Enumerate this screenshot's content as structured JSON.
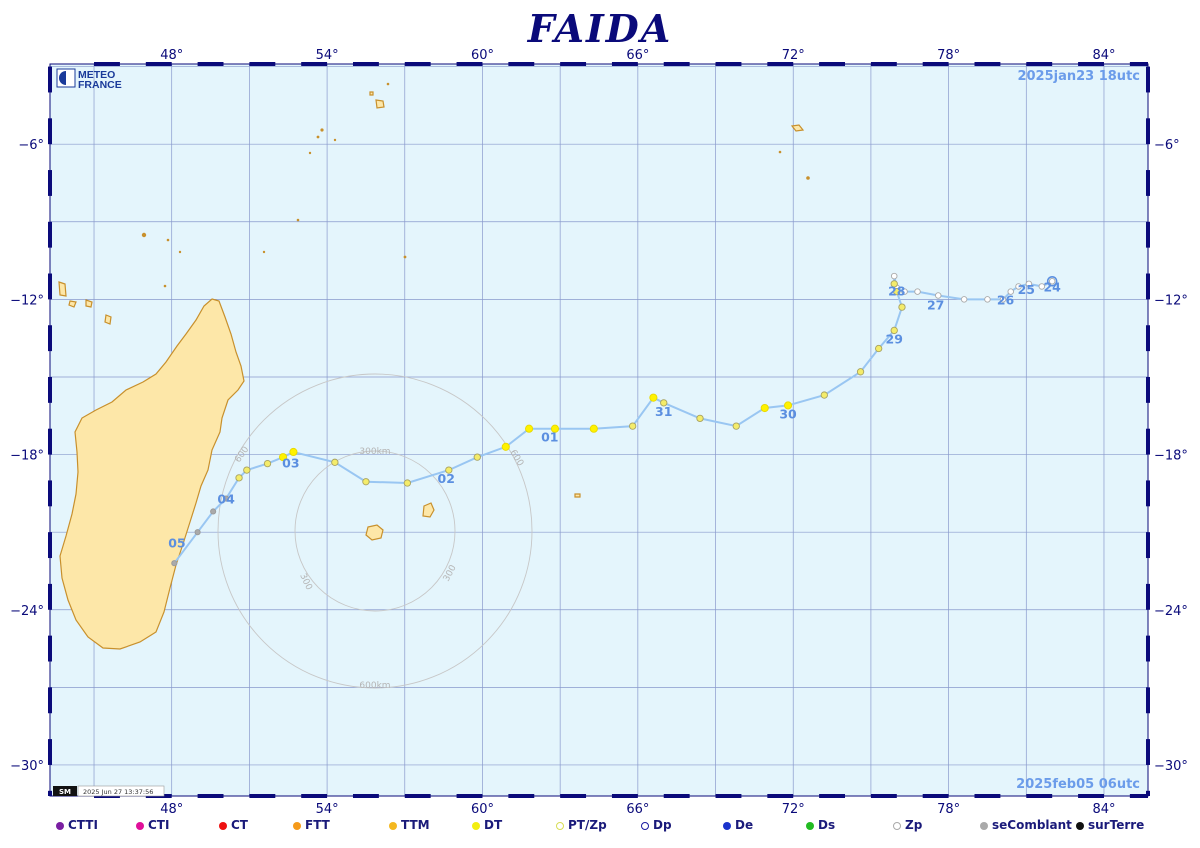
{
  "title": "FAIDA",
  "start_label": "2025jan23  18utc",
  "end_label": "2025feb05  06utc",
  "logo": {
    "line1": "METEO",
    "line2": "FRANCE"
  },
  "footer_stamp": "2025 Jun 27 13:37:56",
  "footer_badge": "SM",
  "lon_ticks": [
    "48°",
    "54°",
    "60°",
    "66°",
    "72°",
    "78°",
    "84°"
  ],
  "lat_ticks": [
    "−6°",
    "−12°",
    "−18°",
    "−24°",
    "−30°"
  ],
  "ring_labels": {
    "inner_top": "300km",
    "outer_bottom": "600km",
    "inner_left": "300",
    "inner_right": "300",
    "outer_left": "600",
    "outer_right": "600"
  },
  "colors": {
    "ocean": "#e4f5fc",
    "land": "#fde7a8",
    "coast": "#c8902c",
    "grid": "#8899cc",
    "frame": "#0a0a7a",
    "track": "#99c6f2",
    "label": "#5b8fe0",
    "dt": "#fff200"
  },
  "track": {
    "points": [
      {
        "lon": 82.0,
        "lat": -11.3,
        "cat": "Zp"
      },
      {
        "lon": 81.6,
        "lat": -11.5,
        "cat": "Zp"
      },
      {
        "lon": 81.1,
        "lat": -11.4,
        "cat": "Zp"
      },
      {
        "lon": 80.7,
        "lat": -11.5,
        "cat": "Zp"
      },
      {
        "lon": 80.4,
        "lat": -11.7,
        "cat": "Zp"
      },
      {
        "lon": 80.1,
        "lat": -12.0,
        "cat": "Zp"
      },
      {
        "lon": 79.5,
        "lat": -12.0,
        "cat": "Zp"
      },
      {
        "lon": 78.6,
        "lat": -12.0,
        "cat": "Zp"
      },
      {
        "lon": 77.6,
        "lat": -11.85,
        "cat": "Zp"
      },
      {
        "lon": 76.8,
        "lat": -11.7,
        "cat": "Zp"
      },
      {
        "lon": 76.3,
        "lat": -11.7,
        "cat": "Zp"
      },
      {
        "lon": 76.0,
        "lat": -11.55,
        "cat": "Zp"
      },
      {
        "lon": 75.9,
        "lat": -11.1,
        "cat": "Zp"
      },
      {
        "lon": 75.9,
        "lat": -11.4,
        "cat": "PT/Zp"
      },
      {
        "lon": 76.0,
        "lat": -11.7,
        "cat": "PT/Zp"
      },
      {
        "lon": 76.2,
        "lat": -12.3,
        "cat": "PT/Zp"
      },
      {
        "lon": 75.9,
        "lat": -13.2,
        "cat": "PT/Zp"
      },
      {
        "lon": 75.3,
        "lat": -13.9,
        "cat": "PT/Zp"
      },
      {
        "lon": 74.6,
        "lat": -14.8,
        "cat": "PT/Zp"
      },
      {
        "lon": 73.2,
        "lat": -15.7,
        "cat": "PT/Zp"
      },
      {
        "lon": 71.8,
        "lat": -16.1,
        "cat": "DT"
      },
      {
        "lon": 70.9,
        "lat": -16.2,
        "cat": "DT"
      },
      {
        "lon": 69.8,
        "lat": -16.9,
        "cat": "PT/Zp"
      },
      {
        "lon": 68.4,
        "lat": -16.6,
        "cat": "PT/Zp"
      },
      {
        "lon": 67.0,
        "lat": -16.0,
        "cat": "PT/Zp"
      },
      {
        "lon": 66.6,
        "lat": -15.8,
        "cat": "DT"
      },
      {
        "lon": 65.8,
        "lat": -16.9,
        "cat": "PT/Zp"
      },
      {
        "lon": 64.3,
        "lat": -17.0,
        "cat": "DT"
      },
      {
        "lon": 62.8,
        "lat": -17.0,
        "cat": "DT"
      },
      {
        "lon": 61.8,
        "lat": -17.0,
        "cat": "DT"
      },
      {
        "lon": 60.9,
        "lat": -17.7,
        "cat": "DT"
      },
      {
        "lon": 59.8,
        "lat": -18.1,
        "cat": "PT/Zp"
      },
      {
        "lon": 58.7,
        "lat": -18.6,
        "cat": "PT/Zp"
      },
      {
        "lon": 57.1,
        "lat": -19.1,
        "cat": "PT/Zp"
      },
      {
        "lon": 55.5,
        "lat": -19.05,
        "cat": "PT/Zp"
      },
      {
        "lon": 54.3,
        "lat": -18.3,
        "cat": "PT/Zp"
      },
      {
        "lon": 52.7,
        "lat": -17.9,
        "cat": "DT"
      },
      {
        "lon": 52.3,
        "lat": -18.1,
        "cat": "DT"
      },
      {
        "lon": 51.7,
        "lat": -18.35,
        "cat": "PT/Zp"
      },
      {
        "lon": 50.9,
        "lat": -18.6,
        "cat": "PT/Zp"
      },
      {
        "lon": 50.6,
        "lat": -18.9,
        "cat": "PT/Zp"
      },
      {
        "lon": 50.1,
        "lat": -19.7,
        "cat": "seComblant"
      },
      {
        "lon": 49.6,
        "lat": -20.2,
        "cat": "seComblant"
      },
      {
        "lon": 49.0,
        "lat": -21.0,
        "cat": "seComblant"
      },
      {
        "lon": 48.1,
        "lat": -22.2,
        "cat": "seComblant"
      }
    ],
    "day_labels": [
      {
        "text": "24",
        "lon": 82.0,
        "lat": -11.7
      },
      {
        "text": "25",
        "lon": 81.0,
        "lat": -11.8
      },
      {
        "text": "26",
        "lon": 80.2,
        "lat": -12.2
      },
      {
        "text": "27",
        "lon": 77.5,
        "lat": -12.4
      },
      {
        "text": "28",
        "lon": 76.0,
        "lat": -11.85
      },
      {
        "text": "29",
        "lon": 75.9,
        "lat": -13.7
      },
      {
        "text": "30",
        "lon": 71.8,
        "lat": -16.6
      },
      {
        "text": "31",
        "lon": 67.0,
        "lat": -16.5
      },
      {
        "text": "01",
        "lon": 62.6,
        "lat": -17.5
      },
      {
        "text": "02",
        "lon": 58.6,
        "lat": -19.1
      },
      {
        "text": "03",
        "lon": 52.6,
        "lat": -18.5
      },
      {
        "text": "04",
        "lon": 50.1,
        "lat": -19.9
      },
      {
        "text": "05",
        "lon": 48.2,
        "lat": -21.6
      }
    ]
  },
  "legend": [
    {
      "label": "CTTI",
      "color": "#7a1fa2",
      "style": "filled"
    },
    {
      "label": "CTI",
      "color": "#e0109a",
      "style": "filled"
    },
    {
      "label": "CT",
      "color": "#ee1111",
      "style": "filled"
    },
    {
      "label": "FTT",
      "color": "#f59a1a",
      "style": "filled"
    },
    {
      "label": "TTM",
      "color": "#f4b820",
      "style": "filled"
    },
    {
      "label": "DT",
      "color": "#f3ee10",
      "style": "filled"
    },
    {
      "label": "PT/Zp",
      "color": "#d7dd55",
      "style": "ring"
    },
    {
      "label": "Dp",
      "color": "#1a1aa0",
      "style": "ring"
    },
    {
      "label": "De",
      "color": "#1a33cc",
      "style": "filled"
    },
    {
      "label": "Ds",
      "color": "#22bb22",
      "style": "filled"
    },
    {
      "label": "Zp",
      "color": "#aaaaaa",
      "style": "ring"
    },
    {
      "label": "seComblant",
      "color": "#aaaaaa",
      "style": "filled"
    },
    {
      "label": "surTerre",
      "color": "#111111",
      "style": "filled"
    }
  ]
}
